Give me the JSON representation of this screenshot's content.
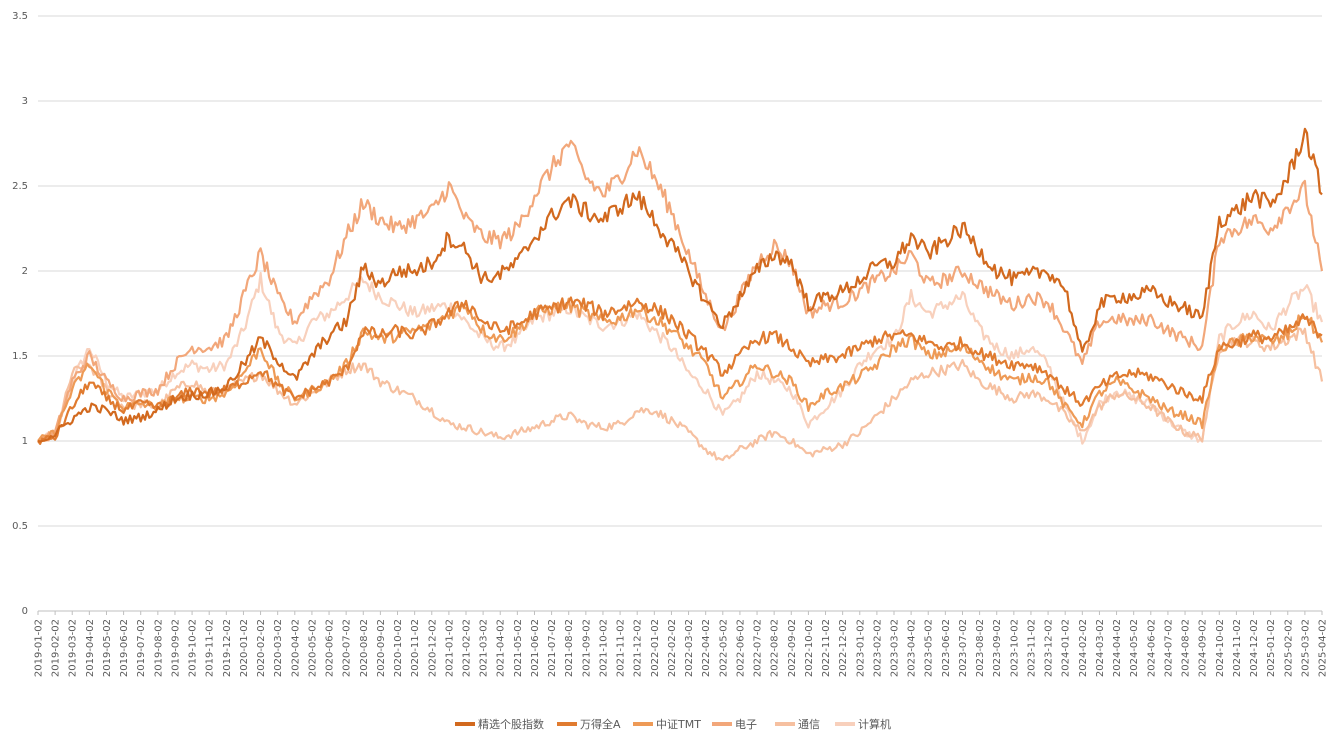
{
  "chart_data": {
    "type": "line",
    "title": "",
    "xlabel": "",
    "ylabel": "",
    "ylim": [
      0,
      3.5
    ],
    "yticks": [
      "0",
      "0.5",
      "1",
      "1.5",
      "2",
      "2.5",
      "3",
      "3.5"
    ],
    "grid": true,
    "legend_position": "bottom",
    "x": [
      "2019-01-02",
      "2019-02-02",
      "2019-03-02",
      "2019-04-02",
      "2019-05-02",
      "2019-06-02",
      "2019-07-02",
      "2019-08-02",
      "2019-09-02",
      "2019-10-02",
      "2019-11-02",
      "2019-12-02",
      "2020-01-02",
      "2020-02-02",
      "2020-03-02",
      "2020-04-02",
      "2020-05-02",
      "2020-06-02",
      "2020-07-02",
      "2020-08-02",
      "2020-09-02",
      "2020-10-02",
      "2020-11-02",
      "2020-12-02",
      "2021-01-02",
      "2021-02-02",
      "2021-03-02",
      "2021-04-02",
      "2021-05-02",
      "2021-06-02",
      "2021-07-02",
      "2021-08-02",
      "2021-09-02",
      "2021-10-02",
      "2021-11-02",
      "2021-12-02",
      "2022-01-02",
      "2022-02-02",
      "2022-03-02",
      "2022-04-02",
      "2022-05-02",
      "2022-06-02",
      "2022-07-02",
      "2022-08-02",
      "2022-09-02",
      "2022-10-02",
      "2022-11-02",
      "2022-12-02",
      "2023-01-02",
      "2023-02-02",
      "2023-03-02",
      "2023-04-02",
      "2023-05-02",
      "2023-06-02",
      "2023-07-02",
      "2023-08-02",
      "2023-09-02",
      "2023-10-02",
      "2023-11-02",
      "2023-12-02",
      "2024-01-02",
      "2024-02-02",
      "2024-03-02",
      "2024-04-02",
      "2024-05-02",
      "2024-06-02",
      "2024-07-02",
      "2024-08-02",
      "2024-09-02",
      "2024-10-02",
      "2024-11-02",
      "2024-12-02",
      "2025-01-02",
      "2025-02-02",
      "2025-03-02",
      "2025-04-02"
    ],
    "series": [
      {
        "name": "精选个股指数",
        "color": "#D2691E",
        "width": 3,
        "values": [
          1.0,
          1.04,
          1.13,
          1.2,
          1.18,
          1.12,
          1.14,
          1.18,
          1.25,
          1.27,
          1.28,
          1.32,
          1.45,
          1.6,
          1.48,
          1.36,
          1.5,
          1.62,
          1.7,
          2.02,
          1.92,
          2.0,
          2.0,
          2.05,
          2.2,
          2.12,
          1.95,
          1.98,
          2.05,
          2.2,
          2.32,
          2.42,
          2.35,
          2.3,
          2.38,
          2.44,
          2.3,
          2.15,
          2.0,
          1.82,
          1.68,
          1.85,
          2.0,
          2.1,
          2.05,
          1.8,
          1.85,
          1.88,
          1.95,
          2.03,
          2.05,
          2.2,
          2.1,
          2.18,
          2.25,
          2.12,
          2.0,
          1.95,
          1.98,
          2.0,
          1.9,
          1.5,
          1.8,
          1.85,
          1.85,
          1.88,
          1.82,
          1.78,
          1.72,
          2.3,
          2.35,
          2.45,
          2.38,
          2.55,
          2.82,
          2.45
        ]
      },
      {
        "name": "万得全A",
        "color": "#E07B30",
        "width": 3,
        "values": [
          1.0,
          1.02,
          1.2,
          1.35,
          1.25,
          1.18,
          1.22,
          1.2,
          1.25,
          1.3,
          1.28,
          1.3,
          1.35,
          1.42,
          1.32,
          1.25,
          1.3,
          1.35,
          1.42,
          1.65,
          1.62,
          1.65,
          1.62,
          1.68,
          1.75,
          1.82,
          1.7,
          1.65,
          1.68,
          1.75,
          1.78,
          1.82,
          1.8,
          1.75,
          1.78,
          1.82,
          1.78,
          1.72,
          1.62,
          1.52,
          1.4,
          1.5,
          1.6,
          1.62,
          1.55,
          1.45,
          1.48,
          1.5,
          1.55,
          1.6,
          1.62,
          1.62,
          1.58,
          1.55,
          1.58,
          1.52,
          1.48,
          1.45,
          1.45,
          1.4,
          1.3,
          1.22,
          1.32,
          1.38,
          1.4,
          1.38,
          1.33,
          1.28,
          1.25,
          1.55,
          1.58,
          1.62,
          1.6,
          1.65,
          1.72,
          1.62
        ]
      },
      {
        "name": "中证TMT",
        "color": "#EE9A56",
        "width": 3,
        "values": [
          1.0,
          1.05,
          1.3,
          1.45,
          1.3,
          1.2,
          1.22,
          1.2,
          1.25,
          1.25,
          1.25,
          1.28,
          1.4,
          1.55,
          1.35,
          1.25,
          1.3,
          1.35,
          1.45,
          1.65,
          1.6,
          1.62,
          1.65,
          1.68,
          1.75,
          1.8,
          1.65,
          1.6,
          1.65,
          1.75,
          1.78,
          1.8,
          1.75,
          1.7,
          1.72,
          1.78,
          1.72,
          1.65,
          1.55,
          1.45,
          1.25,
          1.35,
          1.45,
          1.4,
          1.35,
          1.2,
          1.28,
          1.32,
          1.38,
          1.45,
          1.55,
          1.6,
          1.5,
          1.52,
          1.55,
          1.48,
          1.4,
          1.35,
          1.38,
          1.35,
          1.2,
          1.1,
          1.28,
          1.35,
          1.3,
          1.25,
          1.18,
          1.15,
          1.1,
          1.55,
          1.58,
          1.62,
          1.58,
          1.62,
          1.75,
          1.58
        ]
      },
      {
        "name": "电子",
        "color": "#F2A77A",
        "width": 3,
        "values": [
          1.0,
          1.05,
          1.35,
          1.5,
          1.35,
          1.25,
          1.28,
          1.3,
          1.45,
          1.55,
          1.55,
          1.6,
          1.85,
          2.1,
          1.85,
          1.7,
          1.85,
          1.95,
          2.2,
          2.4,
          2.3,
          2.25,
          2.3,
          2.35,
          2.5,
          2.3,
          2.2,
          2.18,
          2.25,
          2.45,
          2.6,
          2.75,
          2.55,
          2.45,
          2.55,
          2.72,
          2.55,
          2.35,
          2.1,
          1.85,
          1.65,
          1.85,
          2.05,
          2.15,
          2.05,
          1.75,
          1.8,
          1.82,
          1.88,
          1.95,
          2.0,
          2.1,
          1.92,
          1.95,
          2.0,
          1.92,
          1.85,
          1.8,
          1.85,
          1.82,
          1.65,
          1.45,
          1.7,
          1.72,
          1.7,
          1.72,
          1.65,
          1.6,
          1.55,
          2.2,
          2.25,
          2.3,
          2.25,
          2.38,
          2.48,
          2.0
        ]
      },
      {
        "name": "通信",
        "color": "#F6C0A0",
        "width": 3,
        "values": [
          1.0,
          1.02,
          1.4,
          1.45,
          1.3,
          1.2,
          1.22,
          1.2,
          1.3,
          1.35,
          1.28,
          1.3,
          1.35,
          1.4,
          1.3,
          1.22,
          1.28,
          1.35,
          1.42,
          1.45,
          1.35,
          1.3,
          1.25,
          1.18,
          1.1,
          1.08,
          1.05,
          1.02,
          1.05,
          1.08,
          1.12,
          1.15,
          1.1,
          1.08,
          1.1,
          1.18,
          1.18,
          1.12,
          1.05,
          0.95,
          0.88,
          0.95,
          1.0,
          1.05,
          1.0,
          0.92,
          0.95,
          0.98,
          1.05,
          1.15,
          1.25,
          1.35,
          1.4,
          1.42,
          1.45,
          1.35,
          1.3,
          1.25,
          1.28,
          1.25,
          1.15,
          1.05,
          1.2,
          1.28,
          1.25,
          1.2,
          1.12,
          1.05,
          1.02,
          1.55,
          1.6,
          1.58,
          1.55,
          1.6,
          1.65,
          1.35
        ]
      },
      {
        "name": "计算机",
        "color": "#F8D0BC",
        "width": 3,
        "values": [
          1.0,
          1.04,
          1.35,
          1.55,
          1.35,
          1.25,
          1.28,
          1.3,
          1.4,
          1.45,
          1.42,
          1.45,
          1.65,
          1.95,
          1.65,
          1.55,
          1.7,
          1.75,
          1.85,
          1.95,
          1.85,
          1.8,
          1.75,
          1.78,
          1.8,
          1.7,
          1.6,
          1.55,
          1.6,
          1.72,
          1.75,
          1.78,
          1.72,
          1.68,
          1.7,
          1.75,
          1.65,
          1.55,
          1.4,
          1.3,
          1.15,
          1.25,
          1.4,
          1.35,
          1.3,
          1.1,
          1.2,
          1.3,
          1.45,
          1.55,
          1.6,
          1.85,
          1.75,
          1.8,
          1.85,
          1.65,
          1.55,
          1.5,
          1.55,
          1.45,
          1.2,
          1.0,
          1.22,
          1.3,
          1.25,
          1.22,
          1.12,
          1.05,
          1.0,
          1.6,
          1.7,
          1.75,
          1.65,
          1.8,
          1.9,
          1.7
        ]
      }
    ]
  }
}
